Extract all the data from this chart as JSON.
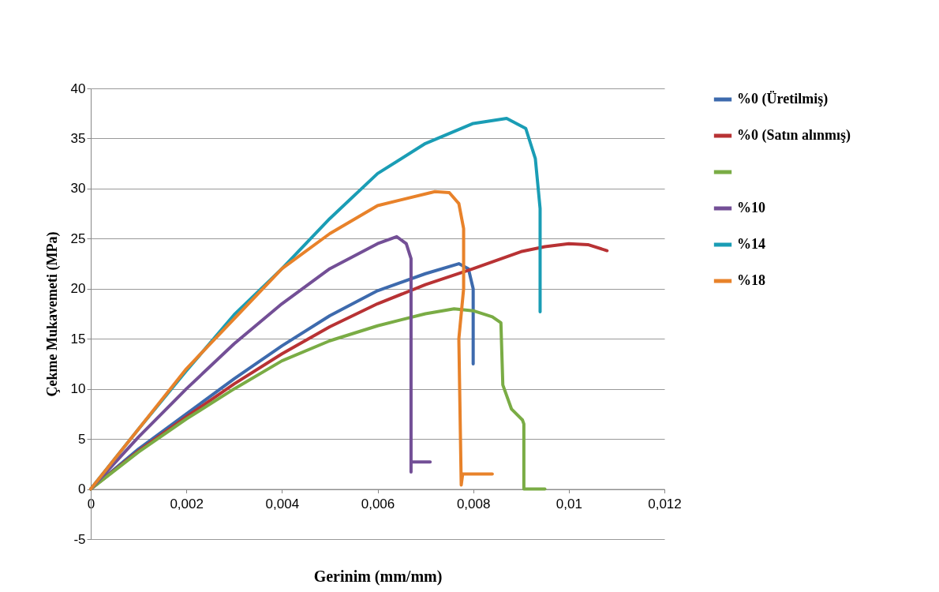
{
  "chart_data": {
    "type": "line",
    "xlabel": "Gerinim (mm/mm)",
    "ylabel": "Çekme Mukavemeti (MPa)",
    "xlim": [
      0,
      0.012
    ],
    "ylim": [
      -5,
      40
    ],
    "xticks": [
      {
        "value": 0,
        "label": "0"
      },
      {
        "value": 0.002,
        "label": "0,002"
      },
      {
        "value": 0.004,
        "label": "0,004"
      },
      {
        "value": 0.006,
        "label": "0,006"
      },
      {
        "value": 0.008,
        "label": "0,008"
      },
      {
        "value": 0.01,
        "label": "0,01"
      },
      {
        "value": 0.012,
        "label": "0,012"
      }
    ],
    "yticks": [
      -5,
      0,
      5,
      10,
      15,
      20,
      25,
      30,
      35,
      40
    ],
    "grid": "y",
    "legend": "right",
    "marker": "none",
    "line_style": "solid",
    "series": [
      {
        "name": "%0 (Üretilmiş)",
        "color": "#3d6aad",
        "x": [
          0,
          0.001,
          0.002,
          0.003,
          0.004,
          0.005,
          0.006,
          0.007,
          0.0077,
          0.0079,
          0.008,
          0.008
        ],
        "values": [
          0,
          4,
          7.5,
          11,
          14.3,
          17.3,
          19.8,
          21.5,
          22.5,
          22,
          20,
          12.5
        ]
      },
      {
        "name": "%0 (Satın alınmış)",
        "color": "#b83234",
        "x": [
          0,
          0.001,
          0.002,
          0.003,
          0.004,
          0.005,
          0.006,
          0.007,
          0.008,
          0.009,
          0.0095,
          0.01,
          0.0104,
          0.0108
        ],
        "values": [
          0,
          3.8,
          7.2,
          10.5,
          13.5,
          16.2,
          18.5,
          20.4,
          22,
          23.7,
          24.2,
          24.5,
          24.4,
          23.8
        ]
      },
      {
        "color": "#7aac45",
        "x": [
          0,
          0.001,
          0.002,
          0.003,
          0.004,
          0.005,
          0.006,
          0.007,
          0.0076,
          0.008,
          0.0084,
          0.00858,
          0.00862,
          0.0088,
          0.00903,
          0.00906,
          0.00906,
          0.0095
        ],
        "values": [
          0,
          3.7,
          7,
          10,
          12.8,
          14.8,
          16.3,
          17.5,
          18,
          17.8,
          17.2,
          16.6,
          10.4,
          8,
          6.9,
          6.5,
          0,
          0
        ]
      },
      {
        "name": "%10",
        "color": "#734f96",
        "x": [
          0,
          0.001,
          0.002,
          0.003,
          0.004,
          0.005,
          0.006,
          0.0064,
          0.0066,
          0.0067,
          0.0067,
          0.0067,
          0.0067,
          0.0071
        ],
        "values": [
          0,
          5.2,
          10,
          14.5,
          18.5,
          22,
          24.5,
          25.2,
          24.5,
          23,
          21,
          1.7,
          2.7,
          2.7
        ]
      },
      {
        "name": "%14",
        "color": "#1a9db5",
        "x": [
          0,
          0.001,
          0.002,
          0.003,
          0.004,
          0.005,
          0.006,
          0.007,
          0.008,
          0.0087,
          0.0091,
          0.0093,
          0.0094,
          0.0094,
          0.0094
        ],
        "values": [
          0,
          6,
          11.8,
          17.4,
          22,
          27,
          31.5,
          34.5,
          36.5,
          37,
          36,
          33,
          28,
          25,
          17.7
        ]
      },
      {
        "name": "%18",
        "color": "#e8822a",
        "x": [
          0,
          0.001,
          0.002,
          0.003,
          0.004,
          0.005,
          0.006,
          0.0072,
          0.0075,
          0.0077,
          0.0078,
          0.0078,
          0.0077,
          0.00775,
          0.00778,
          0.0084
        ],
        "values": [
          0,
          6,
          12,
          17,
          22,
          25.5,
          28.3,
          29.7,
          29.6,
          28.5,
          26,
          20,
          15,
          0.4,
          1.5,
          1.5
        ]
      }
    ]
  }
}
